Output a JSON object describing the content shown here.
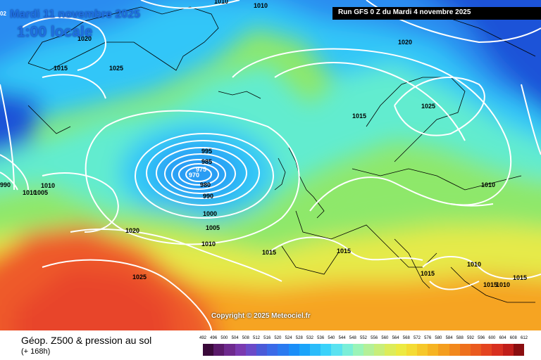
{
  "header": {
    "date_label": "Mardi 11 novembre 2025",
    "time_label": "1:00 locale",
    "run_label": "Run GFS 0 Z du Mardi 4 novembre 2025",
    "corner_fragment": "02"
  },
  "copyright": "Copyright © 2025 Meteociel.fr",
  "footer": {
    "title": "Géop. Z500 & pression au sol",
    "subtitle": "(+ 168h)"
  },
  "scale": {
    "ticks": [
      "492",
      "496",
      "500",
      "504",
      "508",
      "512",
      "516",
      "520",
      "524",
      "528",
      "532",
      "536",
      "540",
      "544",
      "548",
      "552",
      "556",
      "560",
      "564",
      "568",
      "572",
      "576",
      "580",
      "584",
      "588",
      "592",
      "596",
      "600",
      "604",
      "608",
      "612"
    ],
    "colors": [
      "#3a0a3a",
      "#5a1a6a",
      "#6e2a8e",
      "#7a3ab0",
      "#6a4ac8",
      "#4a5ad8",
      "#3a6ae8",
      "#2a7af0",
      "#1a8ef8",
      "#1aa4fa",
      "#2abcfa",
      "#3ad2fa",
      "#5ae2f0",
      "#7aeed8",
      "#9af4b8",
      "#b4f098",
      "#c8ee7a",
      "#dcec5a",
      "#ecea42",
      "#f4dc34",
      "#f6c82a",
      "#f6b422",
      "#f49e1e",
      "#f2881c",
      "#ee701c",
      "#ea5a1e",
      "#e44420",
      "#d83020",
      "#c01e1a",
      "#8a0e10"
    ],
    "icon": "color-scale-legend"
  },
  "isobars": [
    {
      "label": "1010"
    },
    {
      "label": "1010"
    },
    {
      "label": "1020"
    },
    {
      "label": "1015"
    },
    {
      "label": "1025"
    },
    {
      "label": "1020"
    },
    {
      "label": "1025"
    },
    {
      "label": "1015"
    },
    {
      "label": "995"
    },
    {
      "label": "985"
    },
    {
      "label": "975"
    },
    {
      "label": "970"
    },
    {
      "label": "980"
    },
    {
      "label": "990"
    },
    {
      "label": "1000"
    },
    {
      "label": "1005"
    },
    {
      "label": "1010"
    },
    {
      "label": "1010"
    },
    {
      "label": "1010"
    },
    {
      "label": "1005"
    },
    {
      "label": "990"
    },
    {
      "label": "1020"
    },
    {
      "label": "1025"
    },
    {
      "label": "1015"
    },
    {
      "label": "1015"
    },
    {
      "label": "1015"
    },
    {
      "label": "1010"
    },
    {
      "label": "1010"
    },
    {
      "label": "1015"
    },
    {
      "label": "1015"
    },
    {
      "label": "1010"
    }
  ],
  "colors": {
    "blue_dark": "#1a52d8",
    "blue": "#2a7af0",
    "cyan": "#30c6f8",
    "aqua": "#62eccf",
    "green": "#8ee86a",
    "yellow": "#e6ea4a",
    "orange": "#f6a422",
    "red": "#ee5a2c",
    "isobar": "#ffffff",
    "coast": "#000000"
  }
}
